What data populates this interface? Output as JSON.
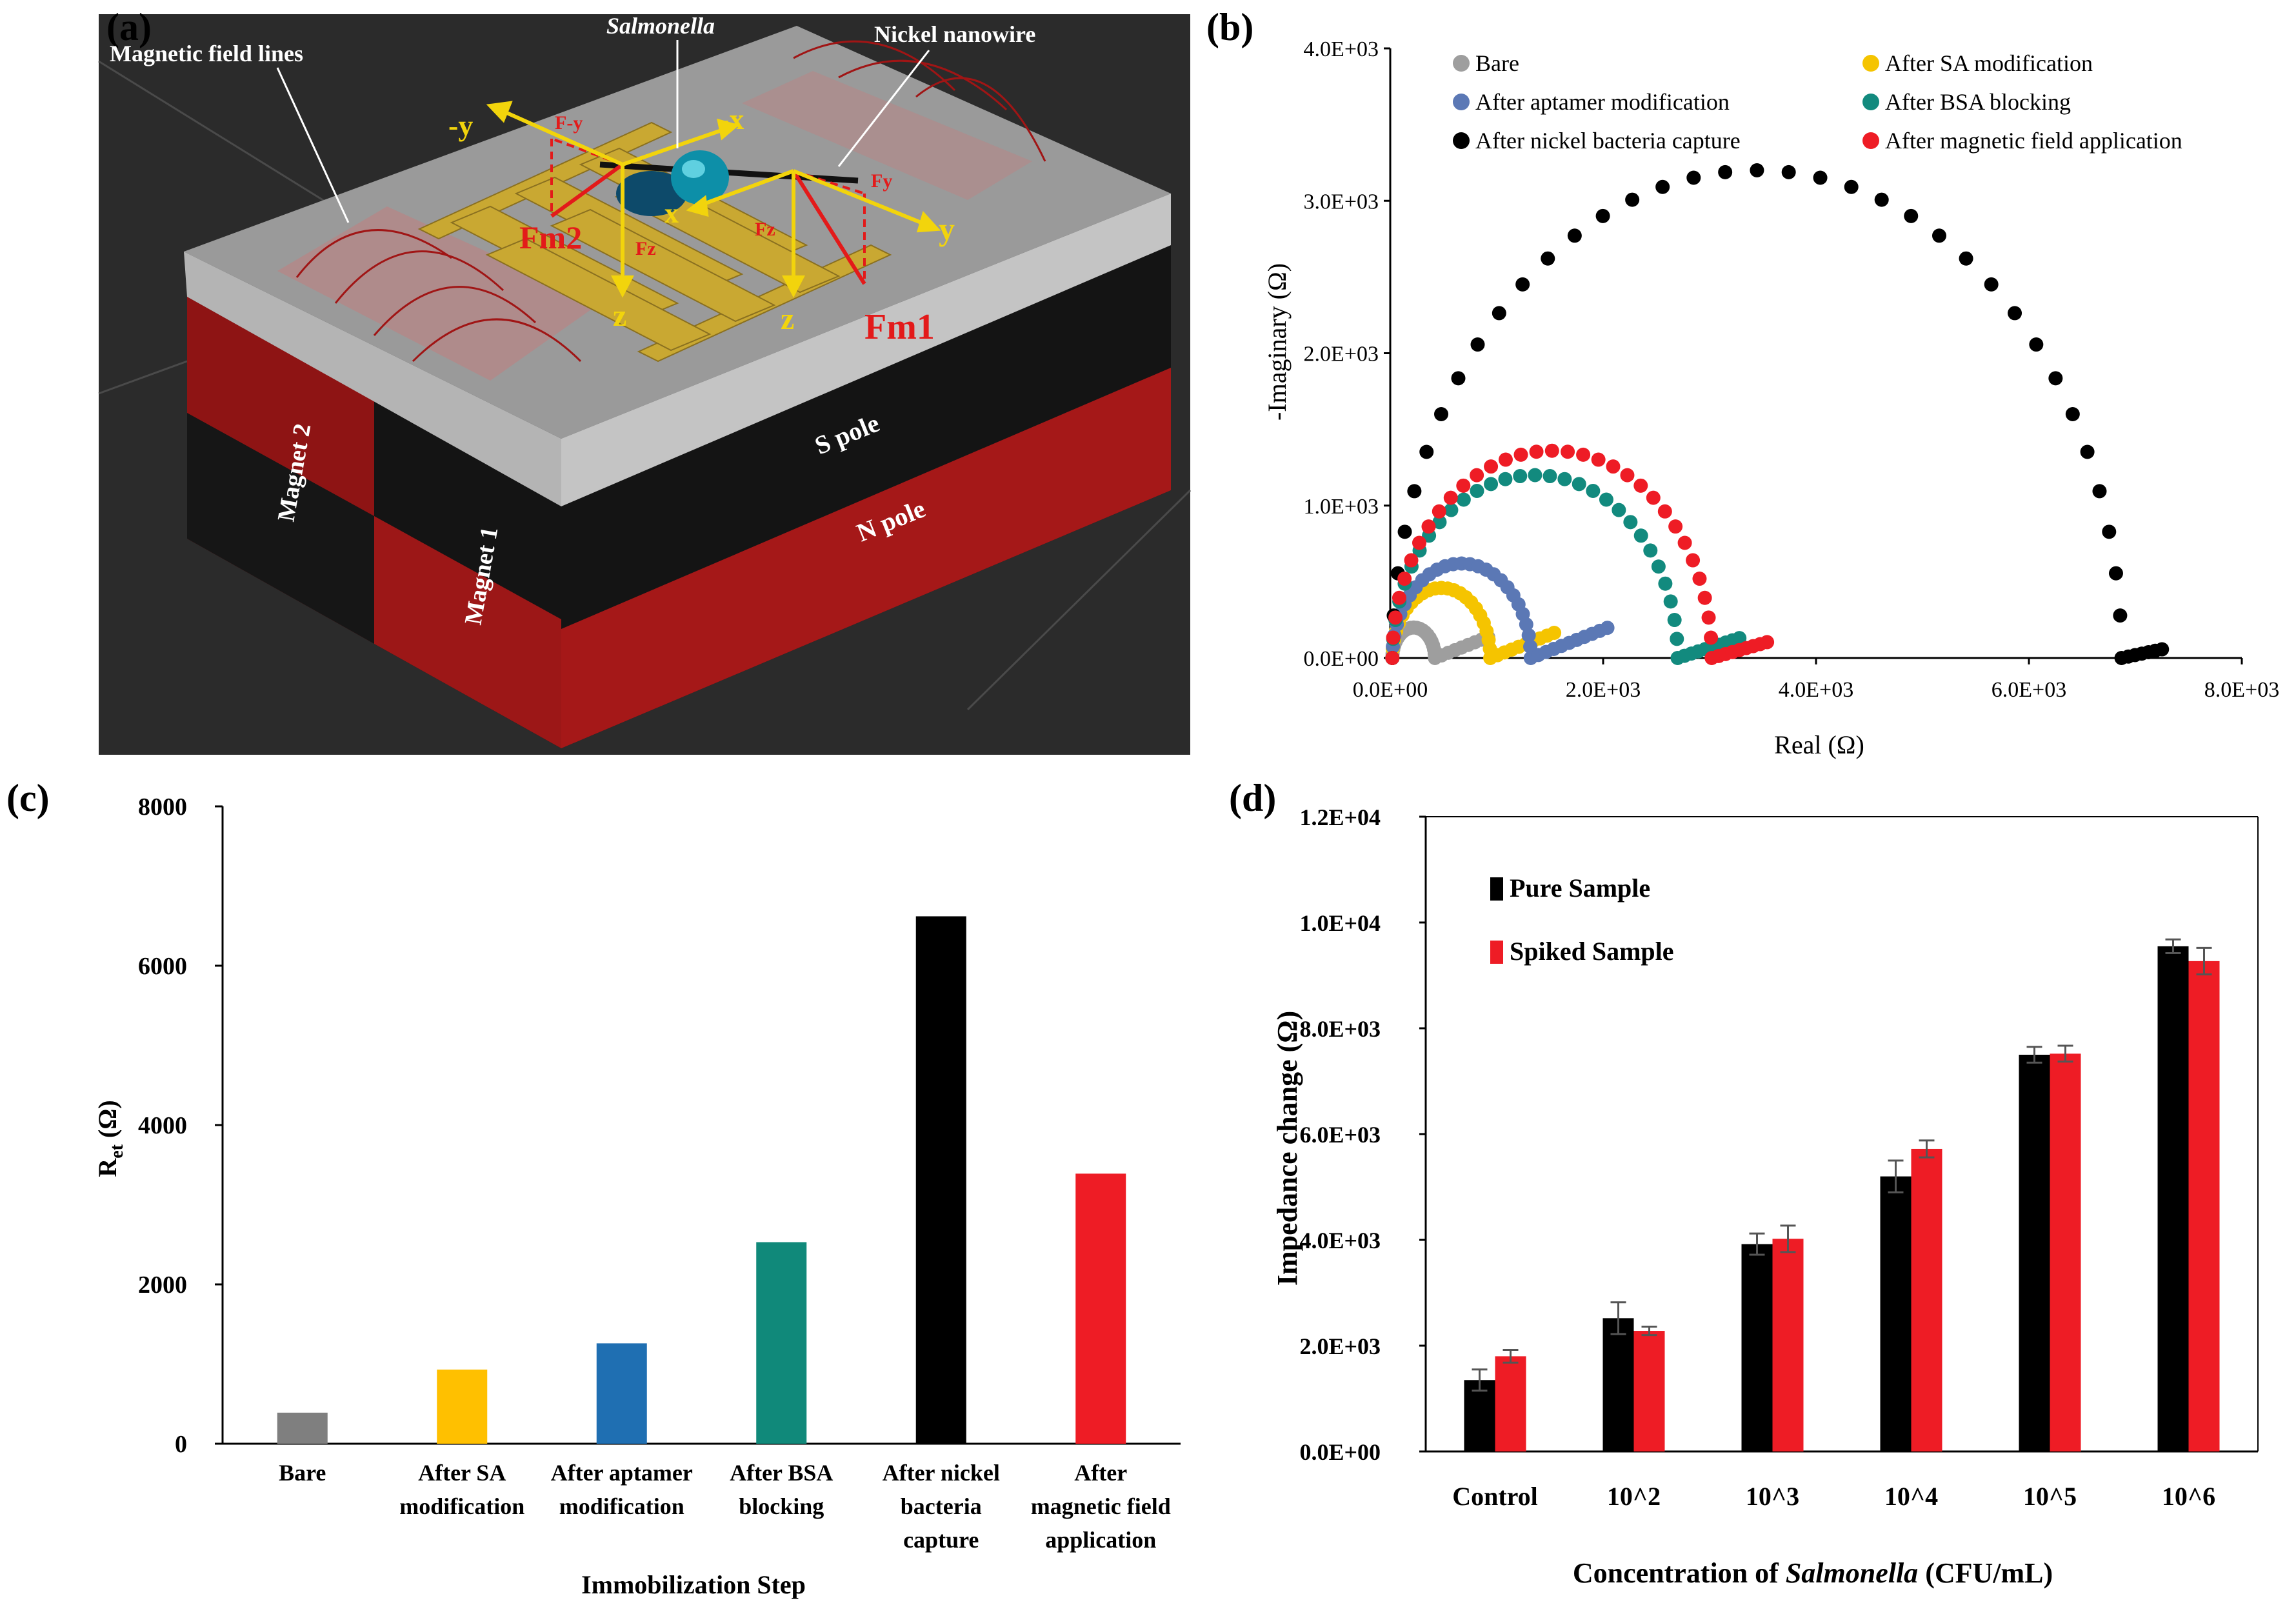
{
  "panel_labels": {
    "a": "(a)",
    "b": "(b)",
    "c": "(c)",
    "d": "(d)"
  },
  "panel_a": {
    "title_labels": {
      "magnetic_field_lines": "Magnetic field lines",
      "salmonella": "Salmonella",
      "nickel_nanowire": "Nickel nanowire",
      "s_pole": "S pole",
      "n_pole": "N pole",
      "magnet_1": "Magnet 1",
      "magnet_2": "Magnet 2"
    },
    "axis_labels": {
      "neg_y": "-y",
      "neg_x": "-x",
      "x": "x",
      "y": "y",
      "z_left": "z",
      "z_right": "z"
    },
    "force_labels": {
      "fm1": "Fm1",
      "fm2": "Fm2",
      "fneg_y": "F-y",
      "fy": "Fy",
      "fz_left": "Fz",
      "fz_right": "Fz"
    },
    "colors": {
      "background": "#2b2b2b",
      "magnet_red": "#9c1717",
      "magnet_black": "#141414",
      "glass": "#a9a9a9",
      "electrode": "#c9a832",
      "bacteria": "#0d8fa8",
      "force_red": "#e31a1a",
      "axis_yellow": "#f2d40c"
    }
  },
  "chart_data": [
    {
      "id": "b",
      "type": "scatter",
      "title": "",
      "xlabel": "Real (Ω)",
      "ylabel": "-Imaginary (Ω)",
      "xlim": [
        0,
        8000
      ],
      "ylim": [
        0,
        4000
      ],
      "xticks": [
        "0.0E+00",
        "2.0E+03",
        "4.0E+03",
        "6.0E+03",
        "8.0E+03"
      ],
      "yticks": [
        "0.0E+00",
        "1.0E+03",
        "2.0E+03",
        "3.0E+03",
        "4.0E+03"
      ],
      "legend": "top",
      "series": [
        {
          "name": "Bare",
          "color": "#9e9e9e",
          "R0": 20,
          "Rct": 400,
          "peak": 200,
          "tail_len": 500,
          "tail_slope": 0.55,
          "n_arc": 22,
          "n_tail": 8
        },
        {
          "name": "After SA modification",
          "color": "#f5c400",
          "R0": 20,
          "Rct": 920,
          "peak": 460,
          "tail_len": 600,
          "tail_slope": 0.55,
          "n_arc": 24,
          "n_tail": 9
        },
        {
          "name": "After aptamer modification",
          "color": "#5b78b5",
          "R0": 20,
          "Rct": 1300,
          "peak": 620,
          "tail_len": 720,
          "tail_slope": 0.55,
          "n_arc": 26,
          "n_tail": 10
        },
        {
          "name": "After BSA blocking",
          "color": "#128a7e",
          "R0": 20,
          "Rct": 2680,
          "peak": 1200,
          "tail_len": 580,
          "tail_slope": 0.45,
          "n_arc": 30,
          "n_tail": 9
        },
        {
          "name": "After nickel bacteria capture",
          "color": "#000000",
          "R0": 20,
          "Rct": 6850,
          "peak": 3200,
          "tail_len": 380,
          "tail_slope": 0.3,
          "n_arc": 36,
          "n_tail": 6
        },
        {
          "name": "After magnetic field application",
          "color": "#ee1c25",
          "R0": 20,
          "Rct": 3000,
          "peak": 1360,
          "tail_len": 520,
          "tail_slope": 0.4,
          "n_arc": 32,
          "n_tail": 8
        }
      ]
    },
    {
      "id": "c",
      "type": "bar",
      "title": "",
      "xlabel": "Immobilization Step",
      "ylabel": "Ret (Ω)",
      "ylabel_main": "R",
      "ylabel_sub": "et",
      "ylabel_unit": " (Ω)",
      "ylim": [
        0,
        8000
      ],
      "yticks": [
        "0",
        "2000",
        "4000",
        "6000",
        "8000"
      ],
      "categories": [
        [
          "Bare"
        ],
        [
          "After SA",
          "modification"
        ],
        [
          "After aptamer",
          "modification"
        ],
        [
          "After BSA",
          "blocking"
        ],
        [
          "After nickel",
          "bacteria",
          "capture"
        ],
        [
          "After",
          "magnetic field",
          "application"
        ]
      ],
      "values": [
        390,
        930,
        1260,
        2530,
        6620,
        3390
      ],
      "colors": [
        "#7f7f7f",
        "#ffc000",
        "#1f6fb2",
        "#10897a",
        "#000000",
        "#ee1c25"
      ]
    },
    {
      "id": "d",
      "type": "bar",
      "title": "",
      "xlabel": "Concentration of Salmonella (CFU/mL)",
      "xlabel_pre": "Concentration of ",
      "xlabel_italic": "Salmonella",
      "xlabel_post": " (CFU/mL)",
      "ylabel": "Impedance change (Ω)",
      "ylim": [
        0,
        12000
      ],
      "yticks": [
        "0.0E+00",
        "2.0E+03",
        "4.0E+03",
        "6.0E+03",
        "8.0E+03",
        "1.0E+04",
        "1.2E+04"
      ],
      "legend": "top-left",
      "categories": [
        "Control",
        "10^2",
        "10^3",
        "10^4",
        "10^5",
        "10^6"
      ],
      "series": [
        {
          "name": "Pure Sample",
          "color": "#000000",
          "values": [
            1350,
            2520,
            3920,
            5200,
            7500,
            9550
          ],
          "errors": [
            200,
            300,
            200,
            300,
            150,
            130
          ]
        },
        {
          "name": "Spiked Sample",
          "color": "#ee1c25",
          "values": [
            1800,
            2280,
            4020,
            5720,
            7520,
            9270
          ],
          "errors": [
            120,
            80,
            250,
            160,
            150,
            250
          ]
        }
      ]
    }
  ]
}
